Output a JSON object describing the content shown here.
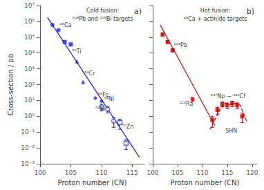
{
  "chart_data": [
    {
      "type": "scatter",
      "title": "a)",
      "xlabel": "Proton number (CN)",
      "ylabel": "Cross-section / pb",
      "log": "y",
      "grid": false,
      "tick_labels": true,
      "xlim": [
        100,
        117
      ],
      "xticks": [
        100,
        105,
        110,
        115
      ],
      "ylim": [
        0.001,
        10000000
      ],
      "yticks": [
        {
          "value": 0.001,
          "label": "10⁻³"
        },
        {
          "value": 0.01,
          "label": "10⁻²"
        },
        {
          "value": 0.1,
          "label": "10⁻¹"
        },
        {
          "value": 1,
          "label": "10⁰"
        },
        {
          "value": 10,
          "label": "10¹"
        },
        {
          "value": 100,
          "label": "10²"
        },
        {
          "value": 1000,
          "label": "10³"
        },
        {
          "value": 10000,
          "label": "10⁴"
        },
        {
          "value": 100000,
          "label": "10⁵"
        },
        {
          "value": 1000000,
          "label": "10⁶"
        },
        {
          "value": 10000000,
          "label": "10⁷"
        }
      ],
      "color": "#1a1aee",
      "series": [
        {
          "type": "line",
          "line_style": "solid",
          "x": [
            101.2,
            116.2
          ],
          "values": [
            1800000,
            0.0025
          ]
        },
        {
          "type": "scatter",
          "marker": "circle",
          "x": [
            102,
            103
          ],
          "values": [
            600000,
            280000
          ]
        },
        {
          "type": "scatter",
          "marker": "square",
          "x": [
            104,
            105
          ],
          "values": [
            50000,
            35000
          ]
        },
        {
          "type": "scatter",
          "marker": "triangle",
          "x": [
            106,
            107
          ],
          "values": [
            3000,
            150
          ]
        },
        {
          "type": "scatter",
          "marker": "diamond",
          "x": [
            109,
            110
          ],
          "values": [
            14,
            9.0
          ]
        },
        {
          "type": "scatter",
          "marker": "open_circle",
          "x": [
            110,
            111,
            112
          ],
          "values": [
            4.0,
            2.8,
            0.5
          ],
          "error_lo": [
            1.8,
            1.2,
            0.3
          ],
          "error_hi": [
            1.8,
            1.2,
            0.3
          ]
        },
        {
          "type": "scatter",
          "marker": "open_square",
          "x": [
            113,
            114
          ],
          "values": [
            0.4,
            0.02
          ],
          "error_lo": [
            0.25,
            0.012
          ],
          "error_hi": [
            0.25,
            0.012
          ]
        }
      ],
      "annotations": [
        "Cold fusion:",
        "²⁰⁸Pb and ²⁰⁹Bi targets",
        {
          "text": "⁴⁸Ca",
          "x": 103.1,
          "y": 550000
        },
        {
          "text": "⁵⁰Ti",
          "x": 105.1,
          "y": 13000
        },
        {
          "text": "⁵⁴Cr",
          "x": 107.1,
          "y": 500
        },
        {
          "text": "⁵⁸Fe",
          "x": 109.3,
          "y": 22
        },
        {
          "text": "⁶⁴Ni",
          "x": 110.3,
          "y": 12
        },
        {
          "text": "⁶²Ni",
          "x": 108.9,
          "y": 3.0
        },
        {
          "text": "⁷⁰Zn",
          "x": 113.2,
          "y": 0.22
        }
      ]
    },
    {
      "type": "scatter",
      "title": "b)",
      "xlabel": "Proton number (CN)",
      "log": "y",
      "grid": false,
      "tick_labels": "x",
      "xlim": [
        100,
        121
      ],
      "xticks": [
        100,
        105,
        110,
        115,
        120
      ],
      "ylim": [
        0.001,
        10000000
      ],
      "yticks": [
        {
          "value": 0.001,
          "label": "10⁻³"
        },
        {
          "value": 0.01,
          "label": "10⁻²"
        },
        {
          "value": 0.1,
          "label": "10⁻¹"
        },
        {
          "value": 1,
          "label": "10⁰"
        },
        {
          "value": 10,
          "label": "10¹"
        },
        {
          "value": 100,
          "label": "10²"
        },
        {
          "value": 1000,
          "label": "10³"
        },
        {
          "value": 10000,
          "label": "10⁴"
        },
        {
          "value": 100000,
          "label": "10⁵"
        },
        {
          "value": 1000000,
          "label": "10⁶"
        },
        {
          "value": 10000000,
          "label": "10⁷"
        }
      ],
      "color": "#cc0000",
      "series": [
        {
          "type": "line",
          "line_style": "solid",
          "x": [
            101.5,
            112.5
          ],
          "values": [
            600000,
            0.25
          ]
        },
        {
          "type": "scatter",
          "marker": "square",
          "x": [
            102,
            103,
            104
          ],
          "values": [
            150000,
            50000,
            15000
          ],
          "error_lo": [
            30000,
            10000,
            3000
          ],
          "error_hi": [
            30000,
            10000,
            3000
          ]
        },
        {
          "type": "scatter",
          "marker": "circle",
          "x": [
            108
          ],
          "values": [
            12
          ],
          "error_lo": [
            3
          ],
          "error_hi": [
            3
          ]
        },
        {
          "type": "scatter",
          "marker": "square",
          "x": [
            112,
            113,
            114,
            115,
            116,
            117,
            118
          ],
          "values": [
            0.6,
            2.5,
            6.0,
            5.0,
            6.5,
            5.0,
            1.0
          ],
          "error_lo": [
            0.4,
            1.2,
            2.0,
            2.0,
            2.5,
            2.0,
            0.6
          ],
          "error_hi": [
            0.4,
            1.2,
            2.0,
            2.0,
            2.5,
            2.0,
            0.6
          ]
        },
        {
          "type": "line",
          "line_style": "dashed",
          "x": [
            111.5,
            112.5,
            113.5,
            114.5,
            115.5,
            116.5,
            117.5,
            118.5,
            119.0
          ],
          "values": [
            0.15,
            0.6,
            2.5,
            6.5,
            5.5,
            6.5,
            5.5,
            1.0,
            0.4
          ]
        }
      ],
      "annotations": [
        "Hot fusion:",
        "⁴⁸Ca + actinide targets",
        {
          "text": "²⁰⁸Pb",
          "x": 104.1,
          "y": 30000
        },
        {
          "text": "²²⁶Ra",
          "x": 105.2,
          "y": 6
        },
        {
          "text": "²³⁷Np − ²⁴⁹Cf",
          "x": 111.5,
          "y": 18
        },
        {
          "text": "SHN",
          "x": 114.5,
          "y": 0.12
        }
      ]
    }
  ]
}
